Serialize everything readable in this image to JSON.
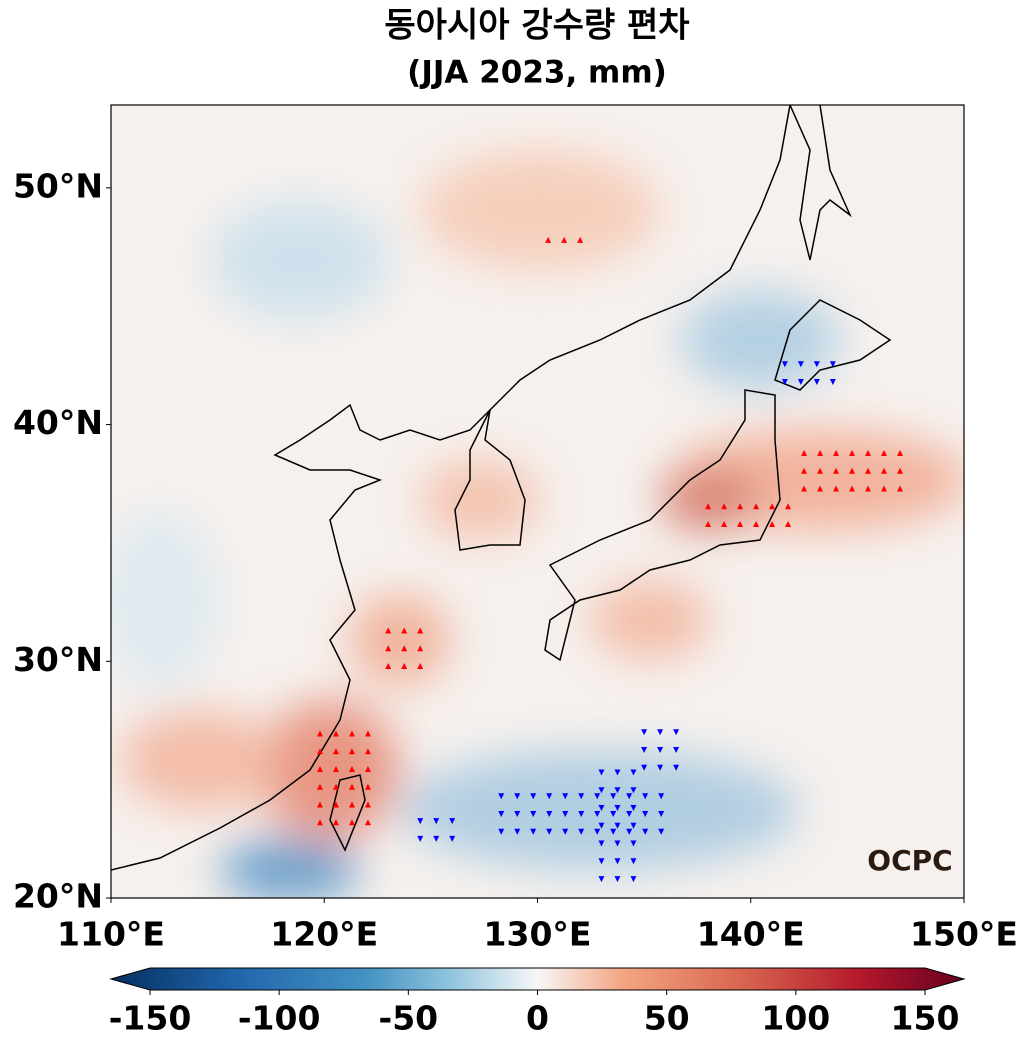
{
  "header": {
    "title": "동아시아 강수량 편차",
    "subtitle": "(JJA 2023, mm)"
  },
  "map": {
    "lonlim": [
      110,
      150
    ],
    "latlim": [
      20,
      53.5
    ],
    "lonticks": [
      {
        "value": 110,
        "label": "110°E"
      },
      {
        "value": 120,
        "label": "120°E"
      },
      {
        "value": 130,
        "label": "130°E"
      },
      {
        "value": 140,
        "label": "140°E"
      },
      {
        "value": 150,
        "label": "150°E"
      }
    ],
    "latticks": [
      {
        "value": 20,
        "label": "20°N"
      },
      {
        "value": 30,
        "label": "30°N"
      },
      {
        "value": 40,
        "label": "40°N"
      },
      {
        "value": 50,
        "label": "50°N"
      }
    ],
    "logo": "OCPC"
  },
  "colorbar": {
    "lim": [
      -150,
      150
    ],
    "ticks": [
      -150,
      -100,
      -50,
      0,
      50,
      100,
      150
    ]
  }
}
